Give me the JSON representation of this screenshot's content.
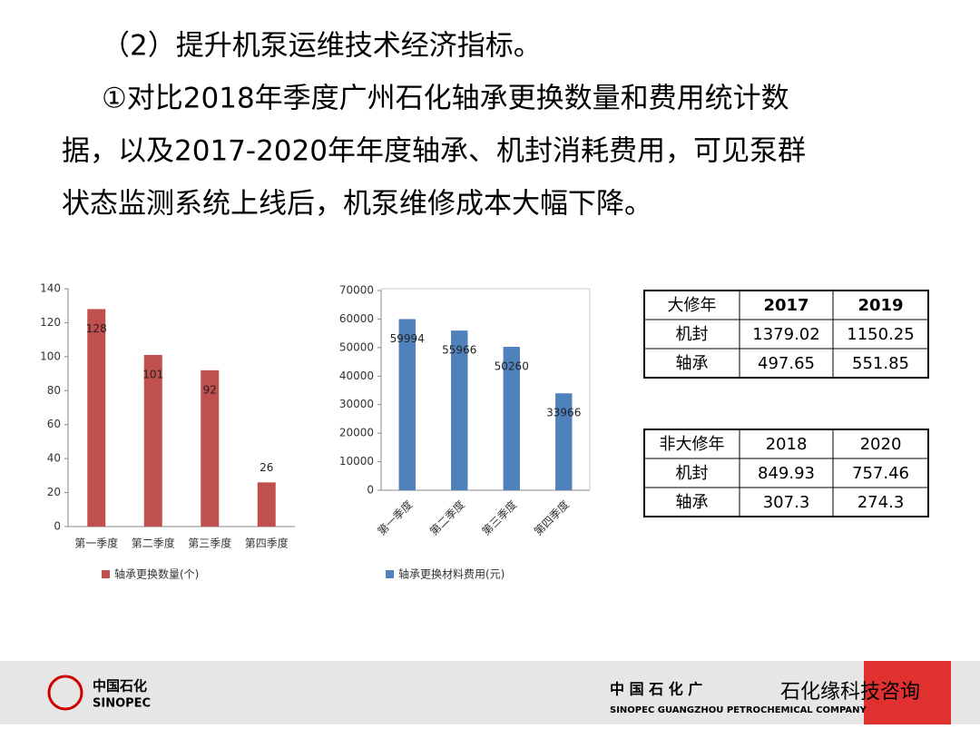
{
  "heading": "（2）提升机泵运维技术经济指标。",
  "paragraph": [
    "①对比2018年季度广州石化轴承更换数量和费用统计数",
    "据，以及2017-2020年年度轴承、机封消耗费用，可见泵群",
    "状态监测系统上线后，机泵维修成本大幅下降。"
  ],
  "chart_data": [
    {
      "type": "bar",
      "categories": [
        "第一季度",
        "第二季度",
        "第三季度",
        "第四季度"
      ],
      "series": [
        {
          "name": "轴承更换数量(个)",
          "color": "#c0504d",
          "values": [
            128,
            101,
            92,
            26
          ]
        }
      ],
      "ylim": [
        0,
        140
      ],
      "yticks": [
        0,
        20,
        40,
        60,
        80,
        100,
        120,
        140
      ],
      "grid": false,
      "legend": "bottom"
    },
    {
      "type": "bar",
      "categories": [
        "第一季度",
        "第二季度",
        "第三季度",
        "第四季度"
      ],
      "series": [
        {
          "name": "轴承更换材料费用(元)",
          "color": "#4f81bd",
          "values": [
            59994,
            55966,
            50260,
            33966
          ]
        }
      ],
      "ylim": [
        0,
        70000
      ],
      "yticks": [
        0,
        10000,
        20000,
        30000,
        40000,
        50000,
        60000,
        70000
      ],
      "grid": false,
      "legend": "bottom"
    }
  ],
  "tables": [
    {
      "header": [
        "大修年",
        "2017",
        "2019"
      ],
      "rows": [
        [
          "机封",
          "1379.02",
          "1150.25"
        ],
        [
          "轴承",
          "497.65",
          "551.85"
        ]
      ]
    },
    {
      "header": [
        "非大修年",
        "2018",
        "2020"
      ],
      "rows": [
        [
          "机封",
          "849.93",
          "757.46"
        ],
        [
          "轴承",
          "307.3",
          "274.3"
        ]
      ]
    }
  ],
  "footer": {
    "logo_cn": "中国石化",
    "logo_en": "SINOPEC",
    "company_cn": "中 国 石 化 广",
    "company_en": "SINOPEC GUANGZHOU PETROCHEMICAL COMPANY",
    "watermark": "石化缘科技咨询"
  }
}
